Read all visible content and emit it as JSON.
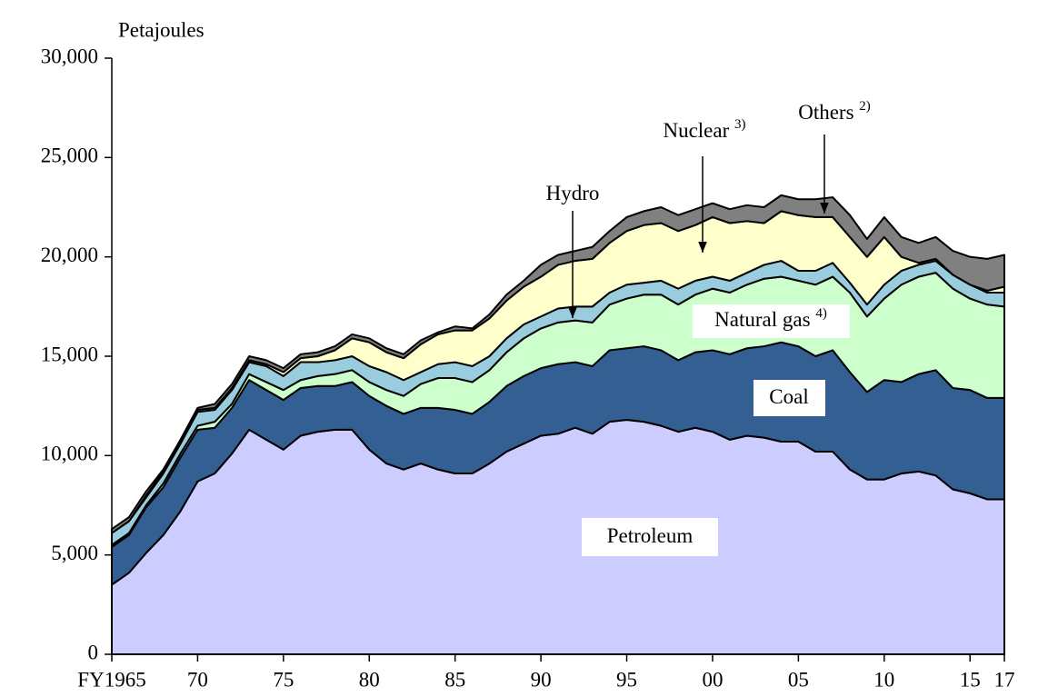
{
  "chart_data": {
    "type": "stacked-area",
    "y_label": "Petajoules",
    "x": [
      1965,
      1966,
      1967,
      1968,
      1969,
      1970,
      1971,
      1972,
      1973,
      1974,
      1975,
      1976,
      1977,
      1978,
      1979,
      1980,
      1981,
      1982,
      1983,
      1984,
      1985,
      1986,
      1987,
      1988,
      1989,
      1990,
      1991,
      1992,
      1993,
      1994,
      1995,
      1996,
      1997,
      1998,
      1999,
      2000,
      2001,
      2002,
      2003,
      2004,
      2005,
      2006,
      2007,
      2008,
      2009,
      2010,
      2011,
      2012,
      2013,
      2014,
      2015,
      2016,
      2017
    ],
    "xlim": [
      1965,
      2017
    ],
    "xticks": [
      {
        "value": 1965,
        "label": "FY1965"
      },
      {
        "value": 1970,
        "label": "70"
      },
      {
        "value": 1975,
        "label": "75"
      },
      {
        "value": 1980,
        "label": "80"
      },
      {
        "value": 1985,
        "label": "85"
      },
      {
        "value": 1990,
        "label": "90"
      },
      {
        "value": 1995,
        "label": "95"
      },
      {
        "value": 2000,
        "label": "00"
      },
      {
        "value": 2005,
        "label": "05"
      },
      {
        "value": 2010,
        "label": "10"
      },
      {
        "value": 2015,
        "label": "15"
      },
      {
        "value": 2017,
        "label": "17"
      }
    ],
    "ylim": [
      0,
      30000
    ],
    "yticks": [
      0,
      {
        "value": 5000,
        "label": "5,000"
      },
      {
        "value": 10000,
        "label": "10,000"
      },
      {
        "value": 15000,
        "label": "15,000"
      },
      {
        "value": 20000,
        "label": "20,000"
      },
      {
        "value": 25000,
        "label": "25,000"
      },
      {
        "value": 30000,
        "label": "30,000"
      }
    ],
    "series": [
      {
        "name": "Petroleum",
        "color": "#ccccff",
        "values": [
          3500,
          4100,
          5100,
          6000,
          7200,
          8700,
          9100,
          10100,
          11300,
          10800,
          10300,
          11000,
          11200,
          11300,
          11300,
          10300,
          9600,
          9300,
          9600,
          9300,
          9100,
          9100,
          9600,
          10200,
          10600,
          11000,
          11100,
          11400,
          11100,
          11700,
          11800,
          11700,
          11500,
          11200,
          11400,
          11200,
          10800,
          11000,
          10900,
          10700,
          10700,
          10200,
          10200,
          9300,
          8800,
          8800,
          9100,
          9200,
          9000,
          8300,
          8100,
          7800,
          7800
        ]
      },
      {
        "name": "Coal",
        "color": "#335f93",
        "values": [
          1900,
          1900,
          2300,
          2400,
          2700,
          2600,
          2300,
          2300,
          2500,
          2500,
          2500,
          2400,
          2300,
          2200,
          2400,
          2700,
          2900,
          2800,
          2800,
          3100,
          3200,
          3000,
          3100,
          3300,
          3400,
          3400,
          3500,
          3300,
          3400,
          3600,
          3600,
          3800,
          3800,
          3600,
          3800,
          4100,
          4300,
          4400,
          4600,
          5000,
          4800,
          4800,
          5100,
          4900,
          4400,
          5000,
          4600,
          4900,
          5300,
          5100,
          5200,
          5100,
          5100
        ]
      },
      {
        "name": "Natural gas",
        "note": "4)",
        "color": "#ccffcc",
        "values": [
          100,
          100,
          100,
          200,
          200,
          200,
          300,
          200,
          300,
          400,
          500,
          400,
          500,
          600,
          600,
          700,
          800,
          900,
          1200,
          1500,
          1600,
          1600,
          1600,
          1700,
          1900,
          2000,
          2100,
          2100,
          2200,
          2300,
          2500,
          2600,
          2800,
          2800,
          2900,
          3100,
          3100,
          3200,
          3400,
          3300,
          3300,
          3600,
          3700,
          4000,
          3800,
          4100,
          4900,
          4900,
          4900,
          5000,
          4600,
          4700,
          4600
        ]
      },
      {
        "name": "Hydro",
        "color": "#99ccdd",
        "values": [
          600,
          600,
          400,
          500,
          500,
          700,
          600,
          700,
          600,
          800,
          700,
          900,
          700,
          700,
          700,
          800,
          900,
          800,
          600,
          700,
          800,
          800,
          700,
          700,
          700,
          600,
          700,
          700,
          800,
          600,
          700,
          600,
          700,
          800,
          700,
          600,
          600,
          600,
          700,
          800,
          500,
          700,
          700,
          500,
          600,
          700,
          700,
          600,
          600,
          700,
          700,
          600,
          700
        ]
      },
      {
        "name": "Nuclear",
        "note": "3)",
        "color": "#ffffcc",
        "values": [
          0,
          0,
          100,
          100,
          100,
          100,
          100,
          100,
          100,
          100,
          200,
          200,
          300,
          500,
          900,
          1200,
          1000,
          1100,
          1400,
          1500,
          1600,
          1800,
          1900,
          1900,
          1900,
          2000,
          2200,
          2300,
          2400,
          2500,
          2700,
          2900,
          2900,
          2900,
          2800,
          3000,
          2900,
          2600,
          2100,
          2500,
          2800,
          2700,
          2300,
          2300,
          2400,
          2400,
          700,
          100,
          100,
          0,
          0,
          100,
          300
        ]
      },
      {
        "name": "Others",
        "note": "2)",
        "color": "#808080",
        "values": [
          200,
          200,
          200,
          100,
          100,
          100,
          200,
          200,
          200,
          200,
          200,
          200,
          200,
          200,
          200,
          200,
          200,
          200,
          200,
          100,
          200,
          100,
          200,
          300,
          300,
          600,
          500,
          500,
          600,
          600,
          700,
          700,
          800,
          800,
          800,
          700,
          700,
          800,
          800,
          800,
          800,
          900,
          1000,
          1100,
          900,
          1000,
          1000,
          1000,
          1100,
          1200,
          1400,
          1600,
          1600
        ]
      }
    ]
  }
}
